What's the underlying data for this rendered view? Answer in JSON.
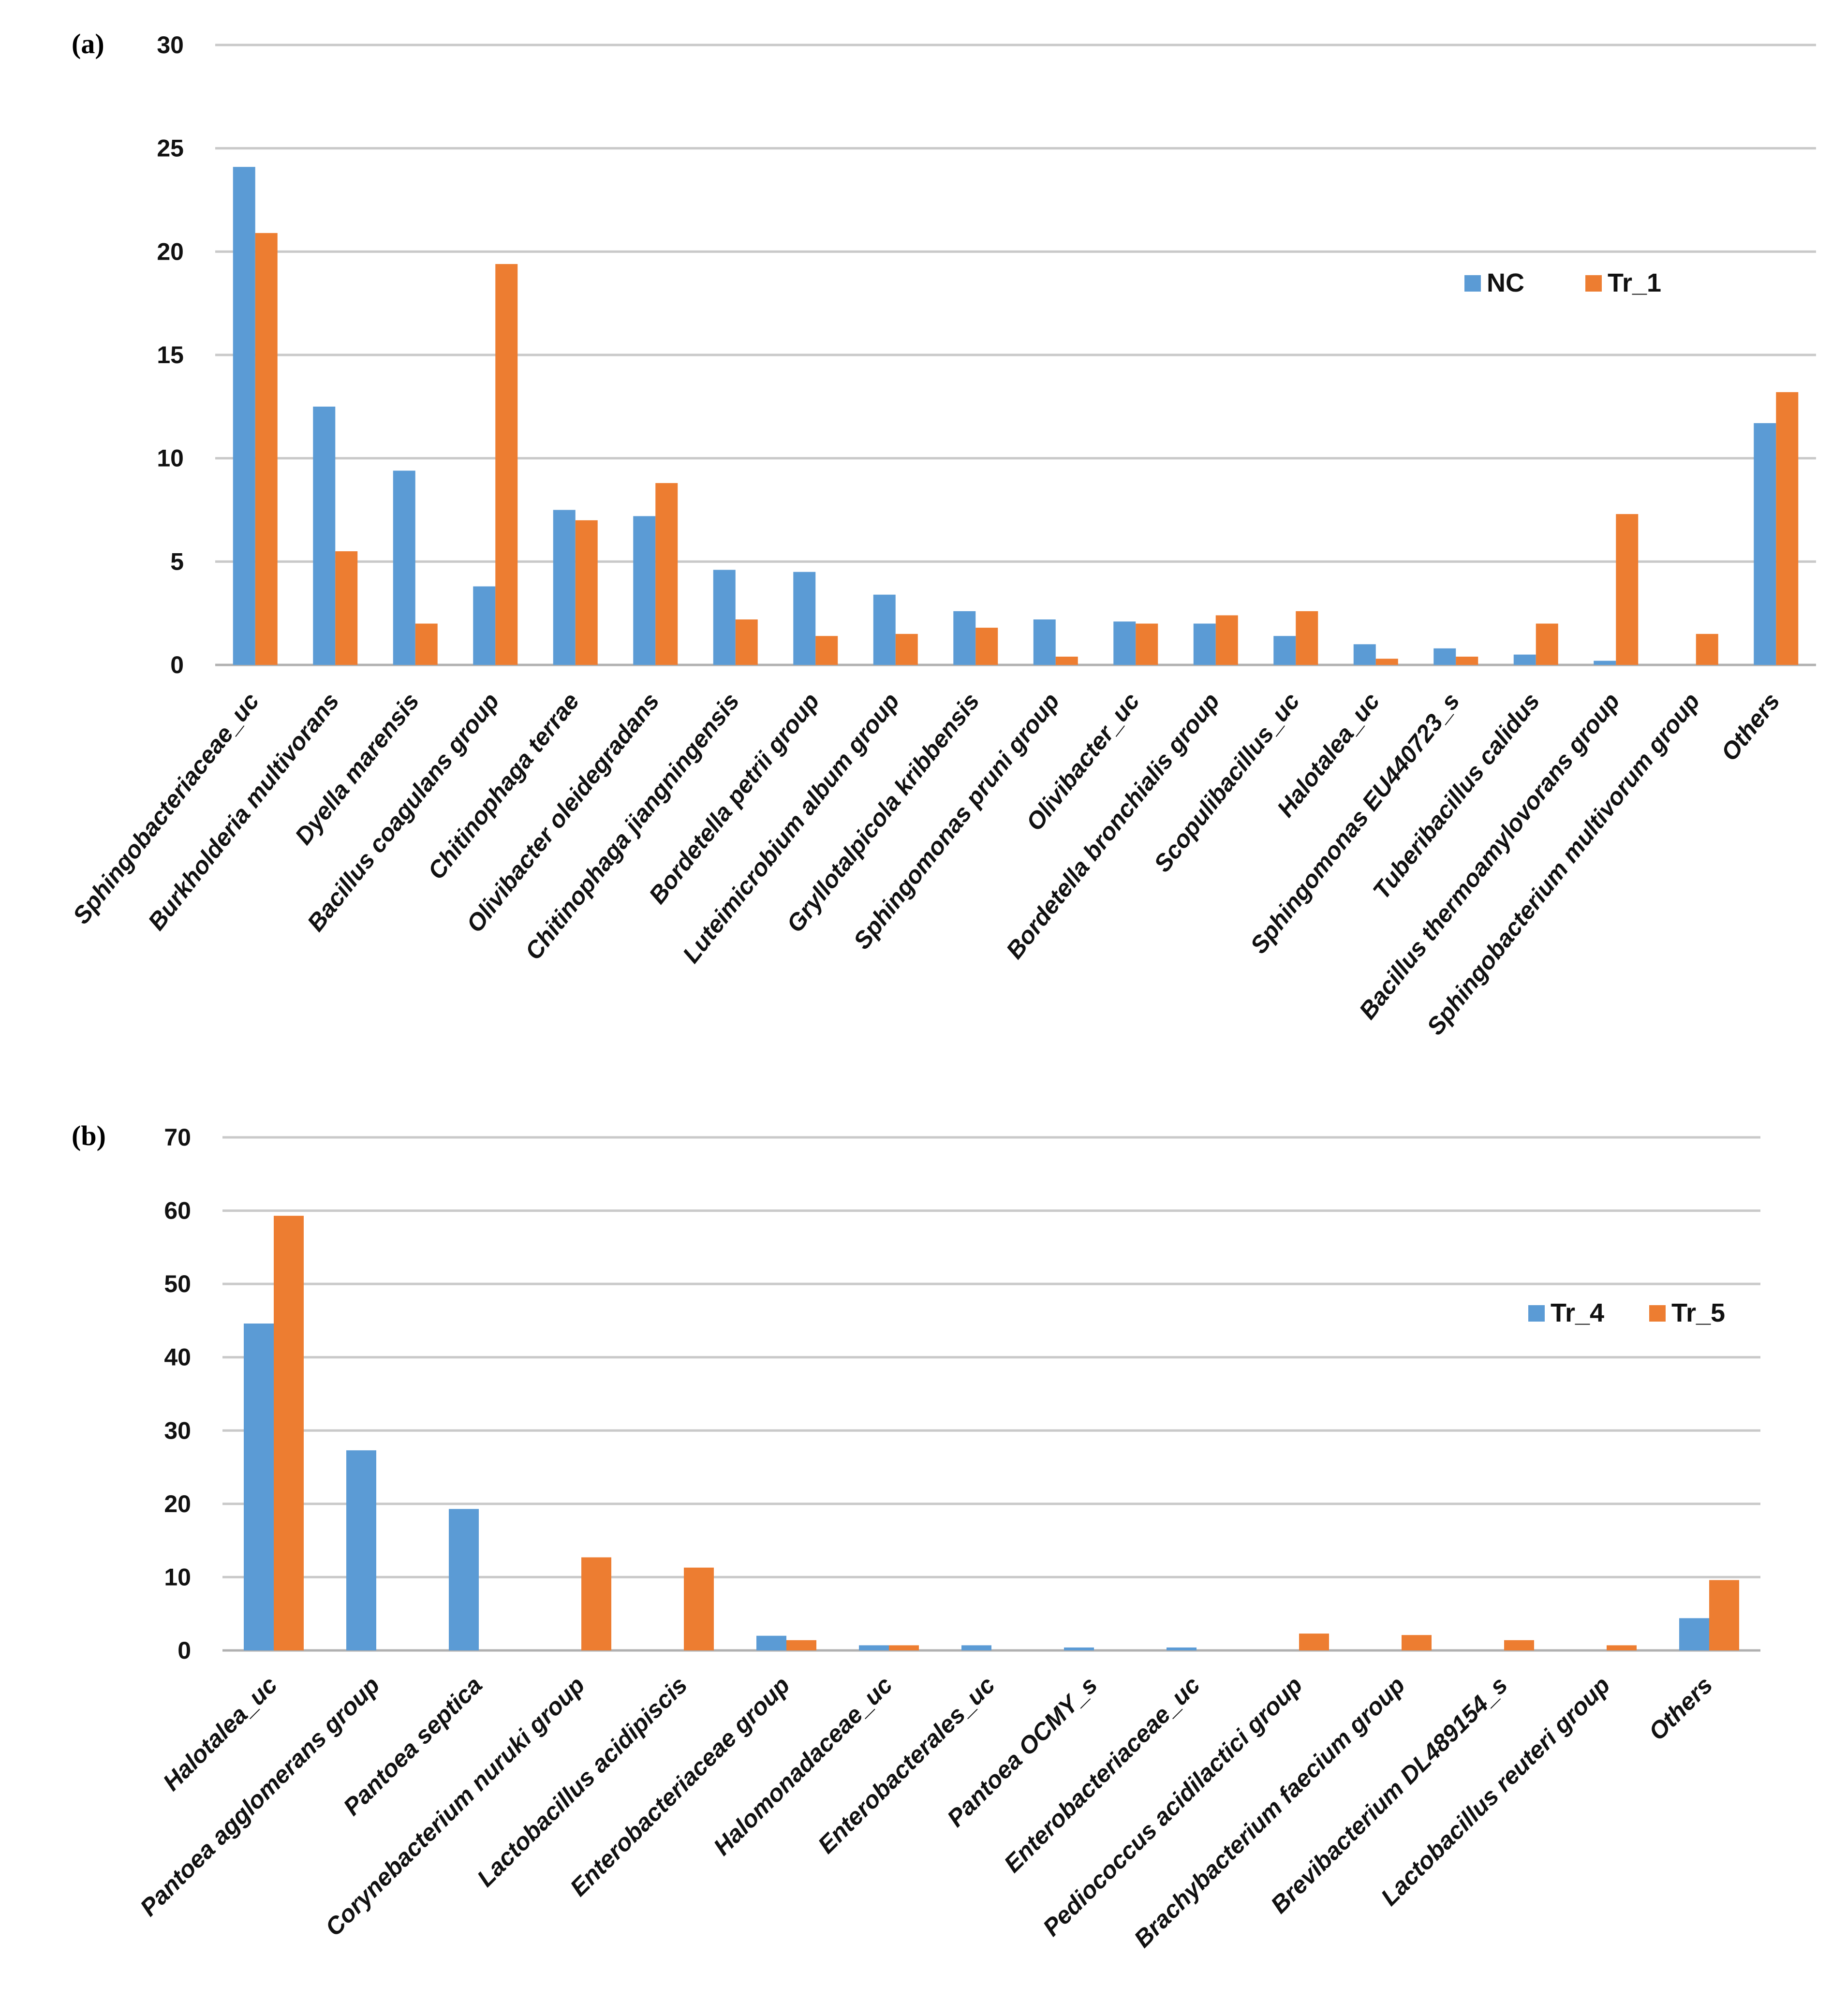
{
  "chart_data": [
    {
      "panel_label": "(a)",
      "type": "bar",
      "ylim": [
        0,
        30
      ],
      "yticks": [
        "0",
        "5",
        "10",
        "15",
        "20",
        "25",
        "30"
      ],
      "grid": true,
      "legend_position": "upper-right",
      "categories": [
        "Sphingobacteriaceae_uc",
        "Burkholderia multivorans",
        "Dyella marensis",
        "Bacillus coagulans group",
        "Chitinophaga terrae",
        "Olivibacter oleidegradans",
        "Chitinophaga jiangningensis",
        "Bordetella petrii group",
        "Luteimicrobium album group",
        "Gryllotalpicola kribbensis",
        "Sphingomonas pruni group",
        "Olivibacter_uc",
        "Bordetella bronchialis group",
        "Scopulibacillus_uc",
        "Halotalea_uc",
        "Sphingomonas EU440723_s",
        "Tuberibacillus calidus",
        "Bacillus thermoamylovorans group",
        "Sphingobacterium multivorum group",
        "Others"
      ],
      "series": [
        {
          "name": "NC",
          "color": "#5b9bd5",
          "values": [
            24.1,
            12.5,
            9.4,
            3.8,
            7.5,
            7.2,
            4.6,
            4.5,
            3.4,
            2.6,
            2.2,
            2.1,
            2.0,
            1.4,
            1.0,
            0.8,
            0.5,
            0.2,
            0.0,
            11.7
          ]
        },
        {
          "name": "Tr_1",
          "color": "#ed7d31",
          "values": [
            20.9,
            5.5,
            2.0,
            19.4,
            7.0,
            8.8,
            2.2,
            1.4,
            1.5,
            1.8,
            0.4,
            2.0,
            2.4,
            2.6,
            0.3,
            0.4,
            2.0,
            7.3,
            1.5,
            13.2
          ]
        }
      ]
    },
    {
      "panel_label": "(b)",
      "type": "bar",
      "ylim": [
        0,
        70
      ],
      "yticks": [
        "0",
        "10",
        "20",
        "30",
        "40",
        "50",
        "60",
        "70"
      ],
      "grid": true,
      "legend_position": "upper-right",
      "categories": [
        "Halotalea_uc",
        "Pantoea agglomerans group",
        "Pantoea septica",
        "Corynebacterium nuruki group",
        "Lactobacillus acidipiscis",
        "Enterobacteriaceae group",
        "Halomonadaceae_uc",
        "Enterobacterales_uc",
        "Pantoea OCMY_s",
        "Enterobacteriaceae_uc",
        "Pediococcus acidilactici group",
        "Brachybacterium faecium group",
        "Brevibacterium DL489154_s",
        "Lactobacillus reuteri group",
        "Others"
      ],
      "series": [
        {
          "name": "Tr_4",
          "color": "#5b9bd5",
          "values": [
            44.6,
            27.3,
            19.3,
            0.0,
            0.0,
            2.0,
            0.7,
            0.7,
            0.4,
            0.4,
            0.0,
            0.0,
            0.0,
            0.0,
            4.4
          ]
        },
        {
          "name": "Tr_5",
          "color": "#ed7d31",
          "values": [
            59.3,
            0.0,
            0.0,
            12.7,
            11.3,
            1.4,
            0.7,
            0.0,
            0.0,
            0.0,
            2.3,
            2.1,
            1.4,
            0.7,
            9.6
          ]
        }
      ]
    }
  ]
}
